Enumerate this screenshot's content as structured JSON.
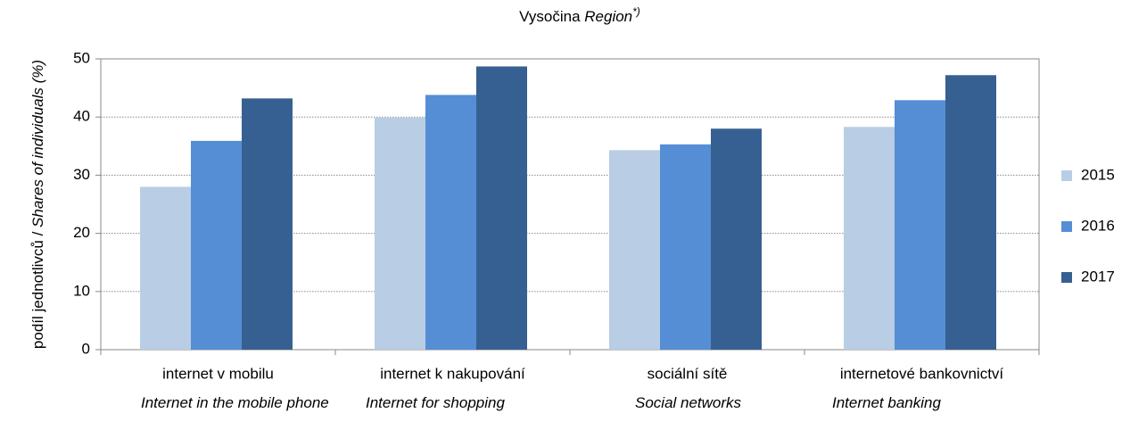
{
  "chart_data": {
    "type": "bar",
    "title": "Vysočina",
    "title_italic": "Region",
    "title_note": "*)",
    "y_label": "podíl jednotlivců / ",
    "y_label_italic": "Shares of individuals (%)",
    "categories": [
      "internet v mobilu",
      "internet k nakupování",
      "sociální sítě",
      "internetové bankovnictví"
    ],
    "categories_en": [
      "Internet in the mobile phone",
      "Internet for shopping",
      "Social networks",
      "Internet banking"
    ],
    "series": [
      {
        "name": "2015",
        "color": "#b9cde5",
        "values": [
          28,
          39.9,
          34.3,
          38.3
        ]
      },
      {
        "name": "2016",
        "color": "#558ed5",
        "values": [
          35.9,
          43.8,
          35.3,
          42.9
        ]
      },
      {
        "name": "2017",
        "color": "#376092",
        "values": [
          43.2,
          48.7,
          38,
          47.2
        ]
      }
    ],
    "ylim": [
      0,
      50
    ],
    "yticks": [
      0,
      10,
      20,
      30,
      40,
      50
    ],
    "grid": true,
    "legend": "right"
  }
}
